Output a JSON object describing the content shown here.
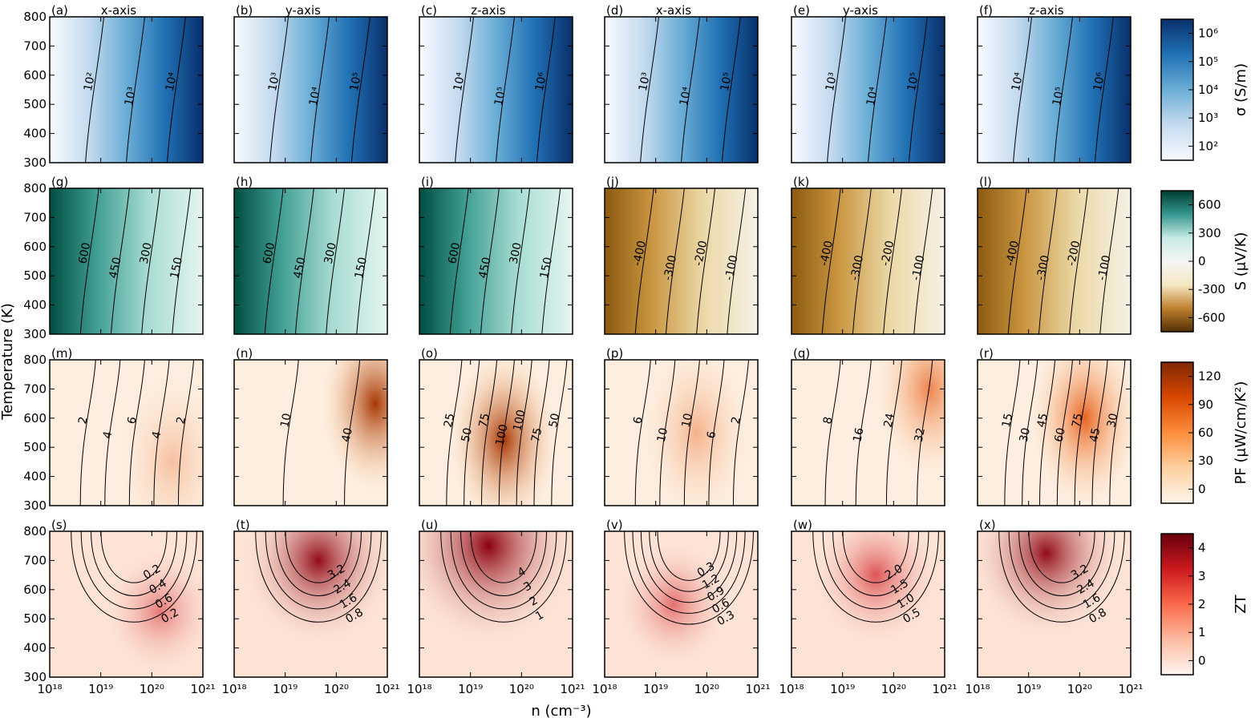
{
  "chart_data": {
    "type": "heatmap",
    "title": "",
    "xlabel": "n (cm⁻³)",
    "ylabel": "Temperature (K)",
    "x_scale": "log",
    "xlim": [
      1e+18,
      1e+21
    ],
    "ylim": [
      300,
      800
    ],
    "x_tick_labels": [
      "10¹⁸",
      "10¹⁹",
      "10²⁰",
      "10²¹"
    ],
    "y_tick_labels": [
      "300",
      "400",
      "500",
      "600",
      "700",
      "800"
    ],
    "column_headers": [
      "x-axis",
      "y-axis",
      "z-axis",
      "x-axis",
      "y-axis",
      "z-axis"
    ],
    "rows": [
      {
        "quantity": "electrical conductivity",
        "colorbar_label": "σ (S/m)",
        "colorbar_ticks": [
          "10²",
          "10³",
          "10⁴",
          "10⁵",
          "10⁶"
        ],
        "colormap": [
          "#f7fbff",
          "#c6dbef",
          "#6baed6",
          "#2171b5",
          "#08306b"
        ],
        "panels": [
          {
            "label": "(a)",
            "contour_labels": [
              "10²",
              "10³",
              "10⁴"
            ]
          },
          {
            "label": "(b)",
            "contour_labels": [
              "10³",
              "10⁴",
              "10⁵"
            ]
          },
          {
            "label": "(c)",
            "contour_labels": [
              "10⁴",
              "10⁵",
              "10⁶"
            ]
          },
          {
            "label": "(d)",
            "contour_labels": [
              "10³",
              "10⁴",
              "10⁵"
            ]
          },
          {
            "label": "(e)",
            "contour_labels": [
              "10³",
              "10⁴",
              "10⁵"
            ]
          },
          {
            "label": "(f)",
            "contour_labels": [
              "10⁴",
              "10⁵",
              "10⁶"
            ]
          }
        ]
      },
      {
        "quantity": "Seebeck coefficient",
        "colorbar_label": "S (μV/K)",
        "colorbar_ticks": [
          "-600",
          "-300",
          "0",
          "300",
          "600"
        ],
        "colormap": [
          "#543005",
          "#bf812d",
          "#f6e8c3",
          "#f5f5f5",
          "#c7eae5",
          "#35978f",
          "#003c30"
        ],
        "panels": [
          {
            "label": "(g)",
            "contour_labels": [
              "600",
              "450",
              "300",
              "150"
            ]
          },
          {
            "label": "(h)",
            "contour_labels": [
              "600",
              "450",
              "300",
              "150"
            ]
          },
          {
            "label": "(i)",
            "contour_labels": [
              "600",
              "450",
              "300",
              "150"
            ]
          },
          {
            "label": "(j)",
            "contour_labels": [
              "-400",
              "-300",
              "-200",
              "-100"
            ]
          },
          {
            "label": "(k)",
            "contour_labels": [
              "-400",
              "-300",
              "-200",
              "-100"
            ]
          },
          {
            "label": "(l)",
            "contour_labels": [
              "-400",
              "-300",
              "-200",
              "-100"
            ]
          }
        ]
      },
      {
        "quantity": "power factor",
        "colorbar_label": "PF (μW/cm/K²)",
        "colorbar_ticks": [
          "0",
          "30",
          "60",
          "90",
          "120"
        ],
        "colormap": [
          "#fff5eb",
          "#fdd0a2",
          "#fd8d3c",
          "#d94801",
          "#7f2704"
        ],
        "panels": [
          {
            "label": "(m)",
            "contour_labels": [
              "2",
              "4",
              "6",
              "4",
              "2"
            ]
          },
          {
            "label": "(n)",
            "contour_labels": [
              "10",
              "40"
            ]
          },
          {
            "label": "(o)",
            "contour_labels": [
              "25",
              "50",
              "75",
              "100",
              "100",
              "75",
              "50"
            ]
          },
          {
            "label": "(p)",
            "contour_labels": [
              "6",
              "10",
              "10",
              "6",
              "2"
            ]
          },
          {
            "label": "(q)",
            "contour_labels": [
              "8",
              "16",
              "24",
              "32"
            ]
          },
          {
            "label": "(r)",
            "contour_labels": [
              "15",
              "30",
              "45",
              "60",
              "75",
              "45",
              "30"
            ]
          }
        ]
      },
      {
        "quantity": "figure of merit",
        "colorbar_label": "ZT",
        "colorbar_ticks": [
          "0",
          "1",
          "2",
          "3",
          "4"
        ],
        "colormap": [
          "#fff5f0",
          "#fcbba1",
          "#fb6a4a",
          "#cb181d",
          "#67000d"
        ],
        "panels": [
          {
            "label": "(s)",
            "contour_labels": [
              "0.2",
              "0.6",
              "0.4",
              "0.2"
            ]
          },
          {
            "label": "(t)",
            "contour_labels": [
              "0.8",
              "1.6",
              "2.4",
              "3.2"
            ]
          },
          {
            "label": "(u)",
            "contour_labels": [
              "1",
              "2",
              "3",
              "4"
            ]
          },
          {
            "label": "(v)",
            "contour_labels": [
              "0.3",
              "0.6",
              "0.9",
              "1.2",
              "0.3"
            ]
          },
          {
            "label": "(w)",
            "contour_labels": [
              "0.5",
              "1.0",
              "1.5",
              "2.0"
            ]
          },
          {
            "label": "(x)",
            "contour_labels": [
              "0.8",
              "1.6",
              "2.4",
              "3.2"
            ]
          }
        ]
      }
    ]
  }
}
